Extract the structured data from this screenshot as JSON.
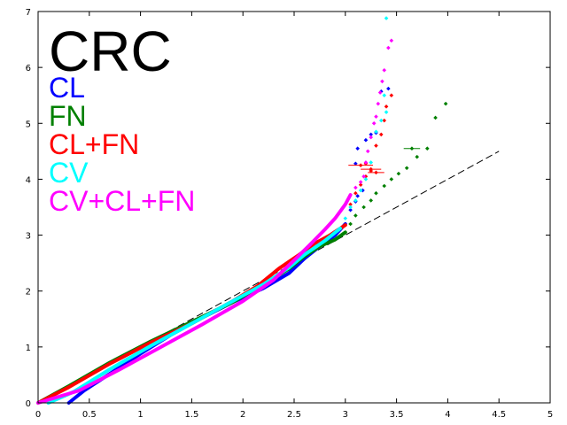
{
  "chart_data": {
    "type": "scatter",
    "title": "CRC",
    "xlabel": "",
    "ylabel": "",
    "xlim": [
      0,
      5
    ],
    "ylim": [
      0,
      7
    ],
    "x_ticks": [
      0,
      0.5,
      1,
      1.5,
      2,
      2.5,
      3,
      3.5,
      4,
      4.5,
      5
    ],
    "x_tick_labels": [
      "0",
      "0.5",
      "1",
      "1.5",
      "2",
      "2.5",
      "3",
      "3.5",
      "4",
      "4.5",
      "5"
    ],
    "y_ticks": [
      0,
      1,
      2,
      3,
      4,
      5,
      6,
      7
    ],
    "y_tick_labels": [
      "0",
      "1",
      "2",
      "3",
      "4",
      "5",
      "6",
      "7"
    ],
    "grid": false,
    "legend_position": "top-left",
    "reference_line": {
      "style": "dashed",
      "color": "#000000",
      "x": [
        0,
        4.5
      ],
      "y": [
        0,
        4.5
      ]
    },
    "series": [
      {
        "name": "CL",
        "color": "#0000ff",
        "curve": [
          [
            0.3,
            0.0
          ],
          [
            0.45,
            0.22
          ],
          [
            0.7,
            0.52
          ],
          [
            1.0,
            0.88
          ],
          [
            1.3,
            1.22
          ],
          [
            1.6,
            1.52
          ],
          [
            1.9,
            1.8
          ],
          [
            2.2,
            2.05
          ],
          [
            2.45,
            2.32
          ],
          [
            2.6,
            2.58
          ],
          [
            2.75,
            2.8
          ],
          [
            2.9,
            3.0
          ],
          [
            3.0,
            3.2
          ]
        ],
        "tail": [
          [
            3.05,
            3.45
          ],
          [
            3.1,
            3.6
          ],
          [
            3.12,
            3.7
          ],
          [
            3.17,
            3.8
          ],
          [
            3.1,
            4.28
          ],
          [
            3.12,
            4.55
          ],
          [
            3.2,
            4.7
          ],
          [
            3.25,
            4.8
          ],
          [
            3.3,
            4.83
          ],
          [
            3.35,
            5.57
          ],
          [
            3.42,
            5.62
          ]
        ]
      },
      {
        "name": "FN",
        "color": "#008000",
        "curve": [
          [
            0.0,
            0.0
          ],
          [
            0.3,
            0.3
          ],
          [
            0.7,
            0.72
          ],
          [
            1.1,
            1.1
          ],
          [
            1.5,
            1.45
          ],
          [
            1.9,
            1.8
          ],
          [
            2.2,
            2.12
          ],
          [
            2.45,
            2.4
          ],
          [
            2.6,
            2.62
          ],
          [
            2.75,
            2.8
          ],
          [
            2.9,
            2.92
          ],
          [
            3.0,
            3.05
          ]
        ],
        "tail": [
          [
            3.05,
            3.2
          ],
          [
            3.1,
            3.35
          ],
          [
            3.18,
            3.5
          ],
          [
            3.25,
            3.62
          ],
          [
            3.3,
            3.75
          ],
          [
            3.38,
            3.88
          ],
          [
            3.45,
            4.0
          ],
          [
            3.52,
            4.1
          ],
          [
            3.6,
            4.2
          ],
          [
            3.7,
            4.4
          ],
          [
            3.8,
            4.55
          ],
          [
            3.88,
            5.1
          ],
          [
            3.98,
            5.35
          ]
        ],
        "errorbars": [
          {
            "x": 3.65,
            "y": 4.55,
            "xerr": 0.08
          }
        ]
      },
      {
        "name": "CL+FN",
        "color": "#ff0000",
        "curve": [
          [
            0.0,
            0.0
          ],
          [
            0.3,
            0.28
          ],
          [
            0.7,
            0.7
          ],
          [
            1.1,
            1.08
          ],
          [
            1.5,
            1.42
          ],
          [
            1.9,
            1.82
          ],
          [
            2.15,
            2.1
          ],
          [
            2.35,
            2.4
          ],
          [
            2.55,
            2.65
          ],
          [
            2.7,
            2.85
          ],
          [
            2.85,
            3.0
          ],
          [
            3.0,
            3.18
          ]
        ],
        "tail": [
          [
            3.05,
            3.55
          ],
          [
            3.1,
            3.75
          ],
          [
            3.15,
            3.9
          ],
          [
            3.2,
            4.05
          ],
          [
            3.25,
            4.15
          ],
          [
            3.2,
            4.28
          ],
          [
            3.3,
            4.6
          ],
          [
            3.35,
            4.8
          ],
          [
            3.38,
            5.05
          ],
          [
            3.4,
            5.3
          ],
          [
            3.45,
            5.5
          ]
        ],
        "errorbars": [
          {
            "x": 3.15,
            "y": 4.25,
            "xerr": 0.12
          },
          {
            "x": 3.25,
            "y": 4.18,
            "xerr": 0.1
          },
          {
            "x": 3.3,
            "y": 4.12,
            "xerr": 0.08
          }
        ]
      },
      {
        "name": "CV",
        "color": "#00ffff",
        "curve": [
          [
            0.1,
            0.0
          ],
          [
            0.35,
            0.2
          ],
          [
            0.7,
            0.6
          ],
          [
            1.1,
            1.02
          ],
          [
            1.5,
            1.42
          ],
          [
            1.9,
            1.82
          ],
          [
            2.2,
            2.12
          ],
          [
            2.45,
            2.42
          ],
          [
            2.6,
            2.65
          ],
          [
            2.8,
            2.9
          ],
          [
            2.95,
            3.12
          ]
        ],
        "tail": [
          [
            3.0,
            3.3
          ],
          [
            3.05,
            3.5
          ],
          [
            3.1,
            3.62
          ],
          [
            3.15,
            3.8
          ],
          [
            3.2,
            4.0
          ],
          [
            3.25,
            4.3
          ],
          [
            3.3,
            4.85
          ],
          [
            3.35,
            5.05
          ],
          [
            3.4,
            5.2
          ],
          [
            3.38,
            5.5
          ],
          [
            3.4,
            6.88
          ]
        ]
      },
      {
        "name": "CV+CL+FN",
        "color": "#ff00ff",
        "curve": [
          [
            0.0,
            0.0
          ],
          [
            0.4,
            0.22
          ],
          [
            0.8,
            0.6
          ],
          [
            1.2,
            1.0
          ],
          [
            1.6,
            1.4
          ],
          [
            2.0,
            1.82
          ],
          [
            2.3,
            2.2
          ],
          [
            2.5,
            2.55
          ],
          [
            2.65,
            2.82
          ],
          [
            2.8,
            3.1
          ],
          [
            2.9,
            3.3
          ],
          [
            3.0,
            3.55
          ],
          [
            3.05,
            3.72
          ]
        ],
        "tail": [
          [
            3.1,
            3.85
          ],
          [
            3.15,
            3.95
          ],
          [
            3.18,
            4.05
          ],
          [
            3.2,
            4.3
          ],
          [
            3.22,
            4.5
          ],
          [
            3.25,
            4.75
          ],
          [
            3.28,
            5.0
          ],
          [
            3.3,
            5.12
          ],
          [
            3.32,
            5.35
          ],
          [
            3.34,
            5.55
          ],
          [
            3.36,
            5.75
          ],
          [
            3.38,
            5.95
          ],
          [
            3.42,
            6.35
          ],
          [
            3.45,
            6.48
          ]
        ]
      }
    ]
  }
}
